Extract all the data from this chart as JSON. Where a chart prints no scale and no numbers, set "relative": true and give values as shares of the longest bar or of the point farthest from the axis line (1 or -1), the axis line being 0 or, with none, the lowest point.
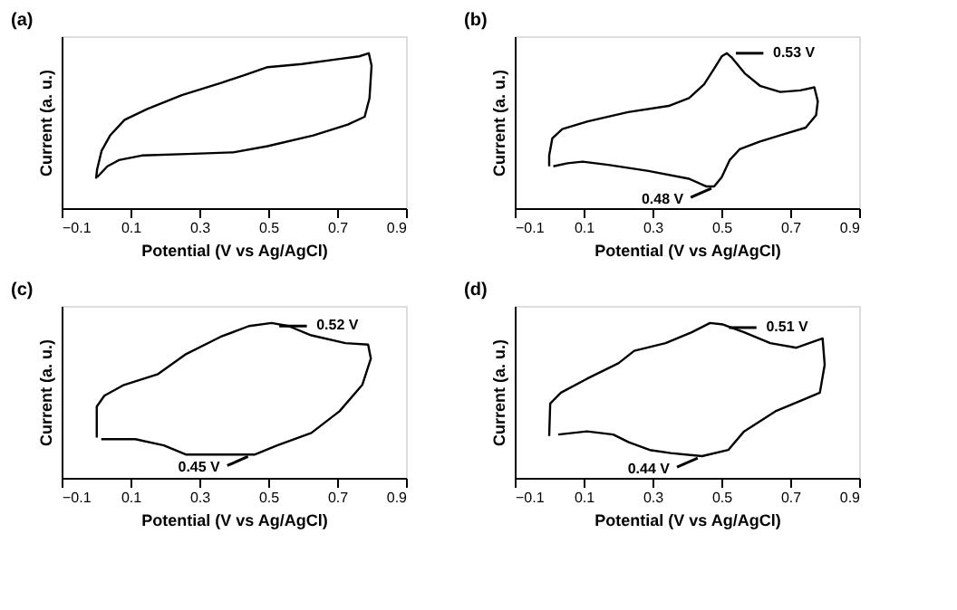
{
  "chart_data": [
    {
      "type": "line",
      "title": "(a)",
      "xlabel": "Potential (V vs Ag/AgCl)",
      "ylabel": "Current (a. u.)",
      "relative": true,
      "xlim": [
        -0.1,
        0.9
      ],
      "xticks": [
        -0.1,
        0.1,
        0.3,
        0.5,
        0.7,
        0.9
      ],
      "tick_labels": "x",
      "legend": false,
      "marker": "none",
      "line_style": "solid",
      "grid": false,
      "series": [
        {
          "color": "#000000",
          "x": [
            0.0,
            0.003,
            0.016,
            0.041,
            0.083,
            0.149,
            0.249,
            0.365,
            0.432,
            0.498,
            0.598,
            0.697,
            0.764,
            0.792,
            0.8,
            0.794,
            0.78,
            0.731,
            0.631,
            0.498,
            0.398,
            0.265,
            0.133,
            0.066,
            0.033,
            0.003
          ],
          "values": [
            0.19,
            0.25,
            0.37,
            0.47,
            0.57,
            0.64,
            0.73,
            0.81,
            0.86,
            0.91,
            0.93,
            0.96,
            0.98,
            1.0,
            0.92,
            0.71,
            0.59,
            0.54,
            0.47,
            0.4,
            0.36,
            0.35,
            0.34,
            0.31,
            0.27,
            0.2
          ]
        }
      ]
    },
    {
      "type": "line",
      "title": "(b)",
      "xlabel": "Potential (V vs Ag/AgCl)",
      "ylabel": "Current (a. u.)",
      "relative": true,
      "xlim": [
        -0.1,
        0.9
      ],
      "xticks": [
        -0.1,
        0.1,
        0.3,
        0.5,
        0.7,
        0.9
      ],
      "tick_labels": "x",
      "legend": false,
      "marker": "none",
      "line_style": "solid",
      "grid": false,
      "annotations": [
        {
          "text": "0.53 V",
          "x": 0.53,
          "y": 1.0
        },
        {
          "text": "0.48 V",
          "x": 0.48,
          "y": 0.14
        }
      ],
      "series": [
        {
          "color": "#000000",
          "x": [
            0.0,
            0.0,
            0.009,
            0.038,
            0.112,
            0.229,
            0.347,
            0.406,
            0.45,
            0.479,
            0.501,
            0.516,
            0.531,
            0.568,
            0.612,
            0.671,
            0.729,
            0.77,
            0.78,
            0.775,
            0.745,
            0.685,
            0.612,
            0.553,
            0.524,
            0.501,
            0.479,
            0.457,
            0.406,
            0.288,
            0.171,
            0.097,
            0.053,
            0.012
          ],
          "values": [
            0.27,
            0.34,
            0.45,
            0.51,
            0.56,
            0.62,
            0.66,
            0.71,
            0.8,
            0.9,
            0.98,
            1.0,
            0.97,
            0.87,
            0.79,
            0.75,
            0.76,
            0.78,
            0.69,
            0.6,
            0.52,
            0.48,
            0.43,
            0.38,
            0.31,
            0.2,
            0.14,
            0.14,
            0.19,
            0.24,
            0.28,
            0.3,
            0.29,
            0.27
          ]
        }
      ]
    },
    {
      "type": "line",
      "title": "(c)",
      "xlabel": "Potential (V vs Ag/AgCl)",
      "ylabel": "Current (a. u.)",
      "relative": true,
      "xlim": [
        -0.1,
        0.9
      ],
      "xticks": [
        -0.1,
        0.1,
        0.3,
        0.5,
        0.7,
        0.9
      ],
      "tick_labels": "x",
      "legend": false,
      "marker": "none",
      "line_style": "solid",
      "grid": false,
      "annotations": [
        {
          "text": "0.52 V",
          "x": 0.52,
          "y": 0.98
        },
        {
          "text": "0.45 V",
          "x": 0.45,
          "y": 0.15
        }
      ],
      "series": [
        {
          "color": "#000000",
          "x": [
            0.002,
            0.002,
            0.024,
            0.081,
            0.18,
            0.262,
            0.361,
            0.444,
            0.51,
            0.559,
            0.625,
            0.724,
            0.79,
            0.798,
            0.773,
            0.707,
            0.625,
            0.526,
            0.46,
            0.361,
            0.262,
            0.197,
            0.114,
            0.015
          ],
          "values": [
            0.26,
            0.46,
            0.53,
            0.6,
            0.67,
            0.8,
            0.91,
            0.98,
            1.0,
            0.98,
            0.92,
            0.87,
            0.86,
            0.77,
            0.6,
            0.43,
            0.29,
            0.21,
            0.15,
            0.15,
            0.15,
            0.21,
            0.25,
            0.25
          ]
        }
      ]
    },
    {
      "type": "line",
      "title": "(d)",
      "xlabel": "Potential (V vs Ag/AgCl)",
      "ylabel": "Current (a. u.)",
      "relative": true,
      "xlim": [
        -0.1,
        0.9
      ],
      "xticks": [
        -0.1,
        0.1,
        0.3,
        0.5,
        0.7,
        0.9
      ],
      "tick_labels": "x",
      "legend": false,
      "marker": "none",
      "line_style": "solid",
      "grid": false,
      "annotations": [
        {
          "text": "0.51 V",
          "x": 0.51,
          "y": 0.97
        },
        {
          "text": "0.44 V",
          "x": 0.44,
          "y": 0.14
        }
      ],
      "series": [
        {
          "color": "#000000",
          "x": [
            0.0,
            0.003,
            0.034,
            0.11,
            0.201,
            0.247,
            0.338,
            0.414,
            0.467,
            0.505,
            0.566,
            0.642,
            0.718,
            0.794,
            0.8,
            0.786,
            0.733,
            0.657,
            0.566,
            0.52,
            0.444,
            0.353,
            0.292,
            0.231,
            0.186,
            0.11,
            0.026
          ],
          "values": [
            0.27,
            0.48,
            0.55,
            0.64,
            0.74,
            0.82,
            0.87,
            0.94,
            1.0,
            0.99,
            0.94,
            0.87,
            0.84,
            0.9,
            0.73,
            0.55,
            0.5,
            0.43,
            0.3,
            0.18,
            0.14,
            0.16,
            0.18,
            0.23,
            0.28,
            0.3,
            0.28
          ]
        }
      ]
    }
  ]
}
